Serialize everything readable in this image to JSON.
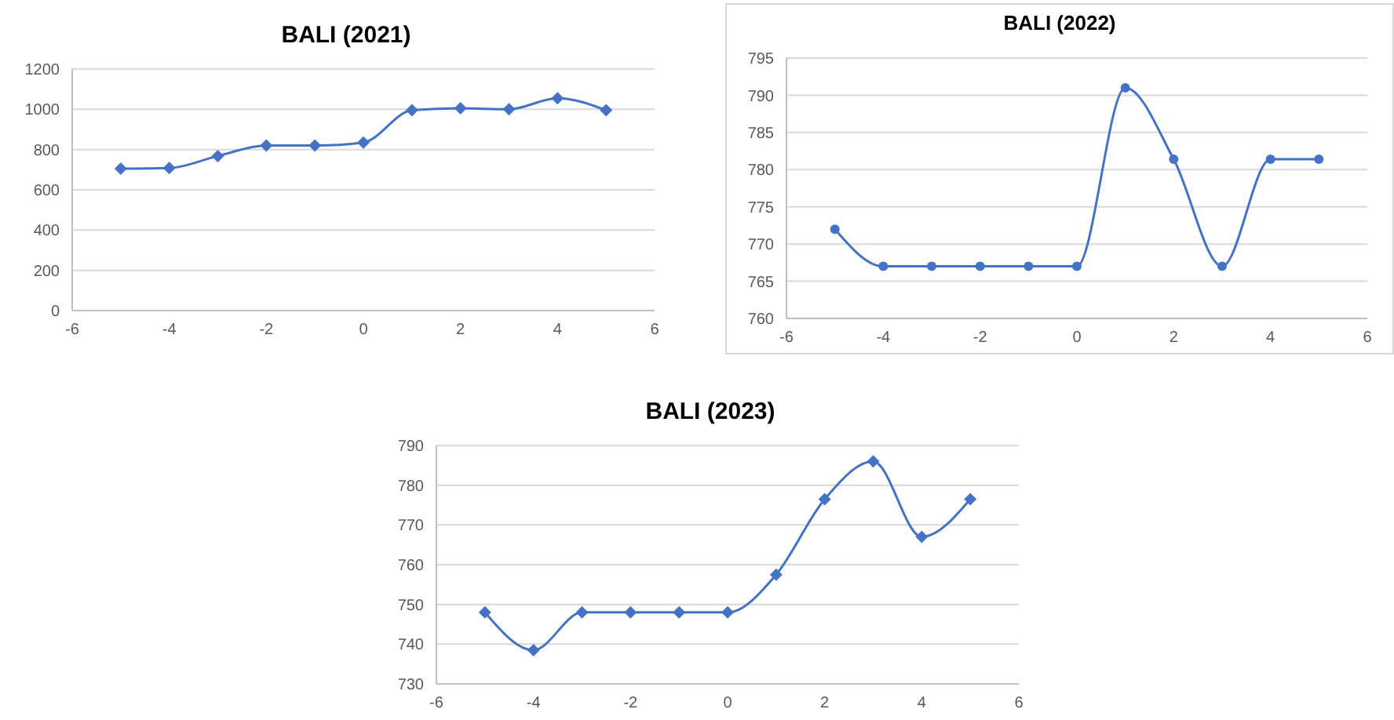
{
  "chart_data": [
    {
      "type": "line",
      "title": "BALI (2021)",
      "x": [
        -5,
        -4,
        -3,
        -2,
        -1,
        0,
        1,
        2,
        3,
        4,
        5
      ],
      "series": [
        {
          "color": "#4472c4",
          "values": [
            705,
            708,
            768,
            820,
            820,
            835,
            995,
            1005,
            1000,
            1055,
            995
          ]
        }
      ],
      "xlim": [
        -6,
        6
      ],
      "xticks": [
        -6,
        -4,
        -2,
        0,
        2,
        4,
        6
      ],
      "ylim": [
        0,
        1200
      ],
      "yticks": [
        0,
        200,
        400,
        600,
        800,
        1000,
        1200
      ],
      "grid": "y",
      "marker": "diamond",
      "legend": false
    },
    {
      "type": "line",
      "title": "BALI (2022)",
      "x": [
        -5,
        -4,
        -3,
        -2,
        -1,
        0,
        1,
        2,
        3,
        4,
        5
      ],
      "series": [
        {
          "color": "#4472c4",
          "values": [
            772,
            767,
            767,
            767,
            767,
            767,
            791,
            781.4,
            767,
            781.4,
            781.4
          ]
        }
      ],
      "xlim": [
        -6,
        6
      ],
      "xticks": [
        -6,
        -4,
        -2,
        0,
        2,
        4,
        6
      ],
      "ylim": [
        760,
        795
      ],
      "yticks": [
        760,
        765,
        770,
        775,
        780,
        785,
        790,
        795
      ],
      "grid": "y",
      "marker": "circle",
      "legend": false
    },
    {
      "type": "line",
      "title": "BALI (2023)",
      "x": [
        -5,
        -4,
        -3,
        -2,
        -1,
        0,
        1,
        2,
        3,
        4,
        5
      ],
      "series": [
        {
          "color": "#4472c4",
          "values": [
            748,
            738.5,
            748,
            748,
            748,
            748,
            757.5,
            776.5,
            786,
            767,
            776.5
          ]
        }
      ],
      "xlim": [
        -6,
        6
      ],
      "xticks": [
        -6,
        -4,
        -2,
        0,
        2,
        4,
        6
      ],
      "ylim": [
        730,
        790
      ],
      "yticks": [
        730,
        740,
        750,
        760,
        770,
        780,
        790
      ],
      "grid": "y",
      "marker": "diamond",
      "legend": false
    }
  ]
}
